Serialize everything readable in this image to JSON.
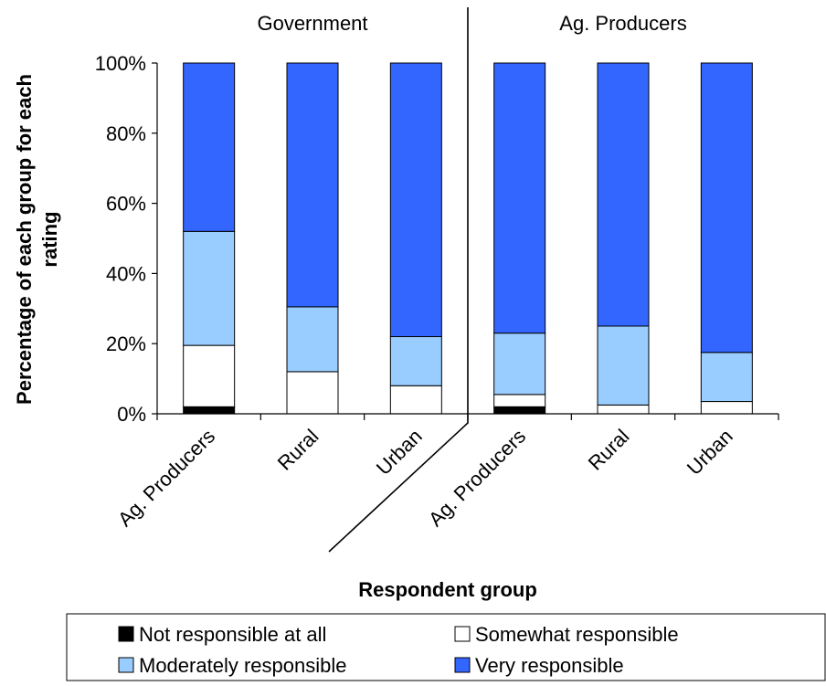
{
  "chart_data": {
    "type": "bar",
    "stacked": true,
    "percent": true,
    "title": "",
    "xlabel": "Respondent group",
    "ylabel": "Percentage of each group for each rating",
    "ylim": [
      0,
      100
    ],
    "yticks": [
      "0%",
      "20%",
      "40%",
      "60%",
      "80%",
      "100%"
    ],
    "groups": [
      "Government",
      "Ag. Producers"
    ],
    "categories": [
      "Ag. Producers",
      "Rural",
      "Urban",
      "Ag. Producers",
      "Rural",
      "Urban"
    ],
    "category_group": [
      0,
      0,
      0,
      1,
      1,
      1
    ],
    "series": [
      {
        "name": "Not responsible at all",
        "color": "#000000",
        "values": [
          2,
          0,
          0,
          2,
          0,
          0
        ]
      },
      {
        "name": "Somewhat responsible",
        "color": "#ffffff",
        "values": [
          17.5,
          12,
          8,
          3.5,
          2.5,
          3.5
        ]
      },
      {
        "name": "Moderately responsible",
        "color": "#99ccff",
        "values": [
          32.5,
          18.5,
          14,
          17.5,
          22.5,
          14
        ]
      },
      {
        "name": "Very responsible",
        "color": "#3366ff",
        "values": [
          48,
          69.5,
          78,
          77,
          75,
          82.5
        ]
      }
    ],
    "legend": {
      "placement": "bottom",
      "order": [
        0,
        1,
        2,
        3
      ]
    }
  }
}
